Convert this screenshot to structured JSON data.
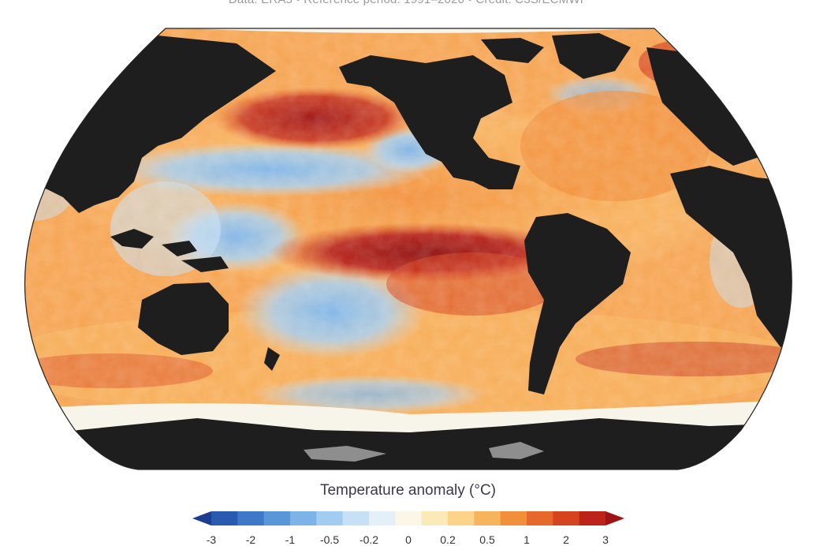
{
  "credit": "Data: ERA5 • Reference period: 1991–2020 • Credit: C3S/ECMWF",
  "legend": {
    "title": "Temperature anomaly (°C)",
    "ticks": [
      "-3",
      "-2",
      "-1",
      "-0.5",
      "-0.2",
      "0",
      "0.2",
      "0.5",
      "1",
      "2",
      "3"
    ],
    "colors": [
      "#1a3d8f",
      "#2a59b0",
      "#3f78c7",
      "#5b97d8",
      "#7db3e6",
      "#a3cdf0",
      "#c6e0f5",
      "#e4f0f8",
      "#fbf6e6",
      "#fce9b8",
      "#fbd48a",
      "#f8b45c",
      "#f28f3b",
      "#e6682b",
      "#d6431f",
      "#bd2419",
      "#9e1414"
    ]
  },
  "map": {
    "projection": "Robinson-like (Pacific-centred)",
    "land_color": "#1e1e1e",
    "antarctic_shelf_color": "#8e8e8e",
    "sea_ice_color": "#f7f4ea"
  }
}
